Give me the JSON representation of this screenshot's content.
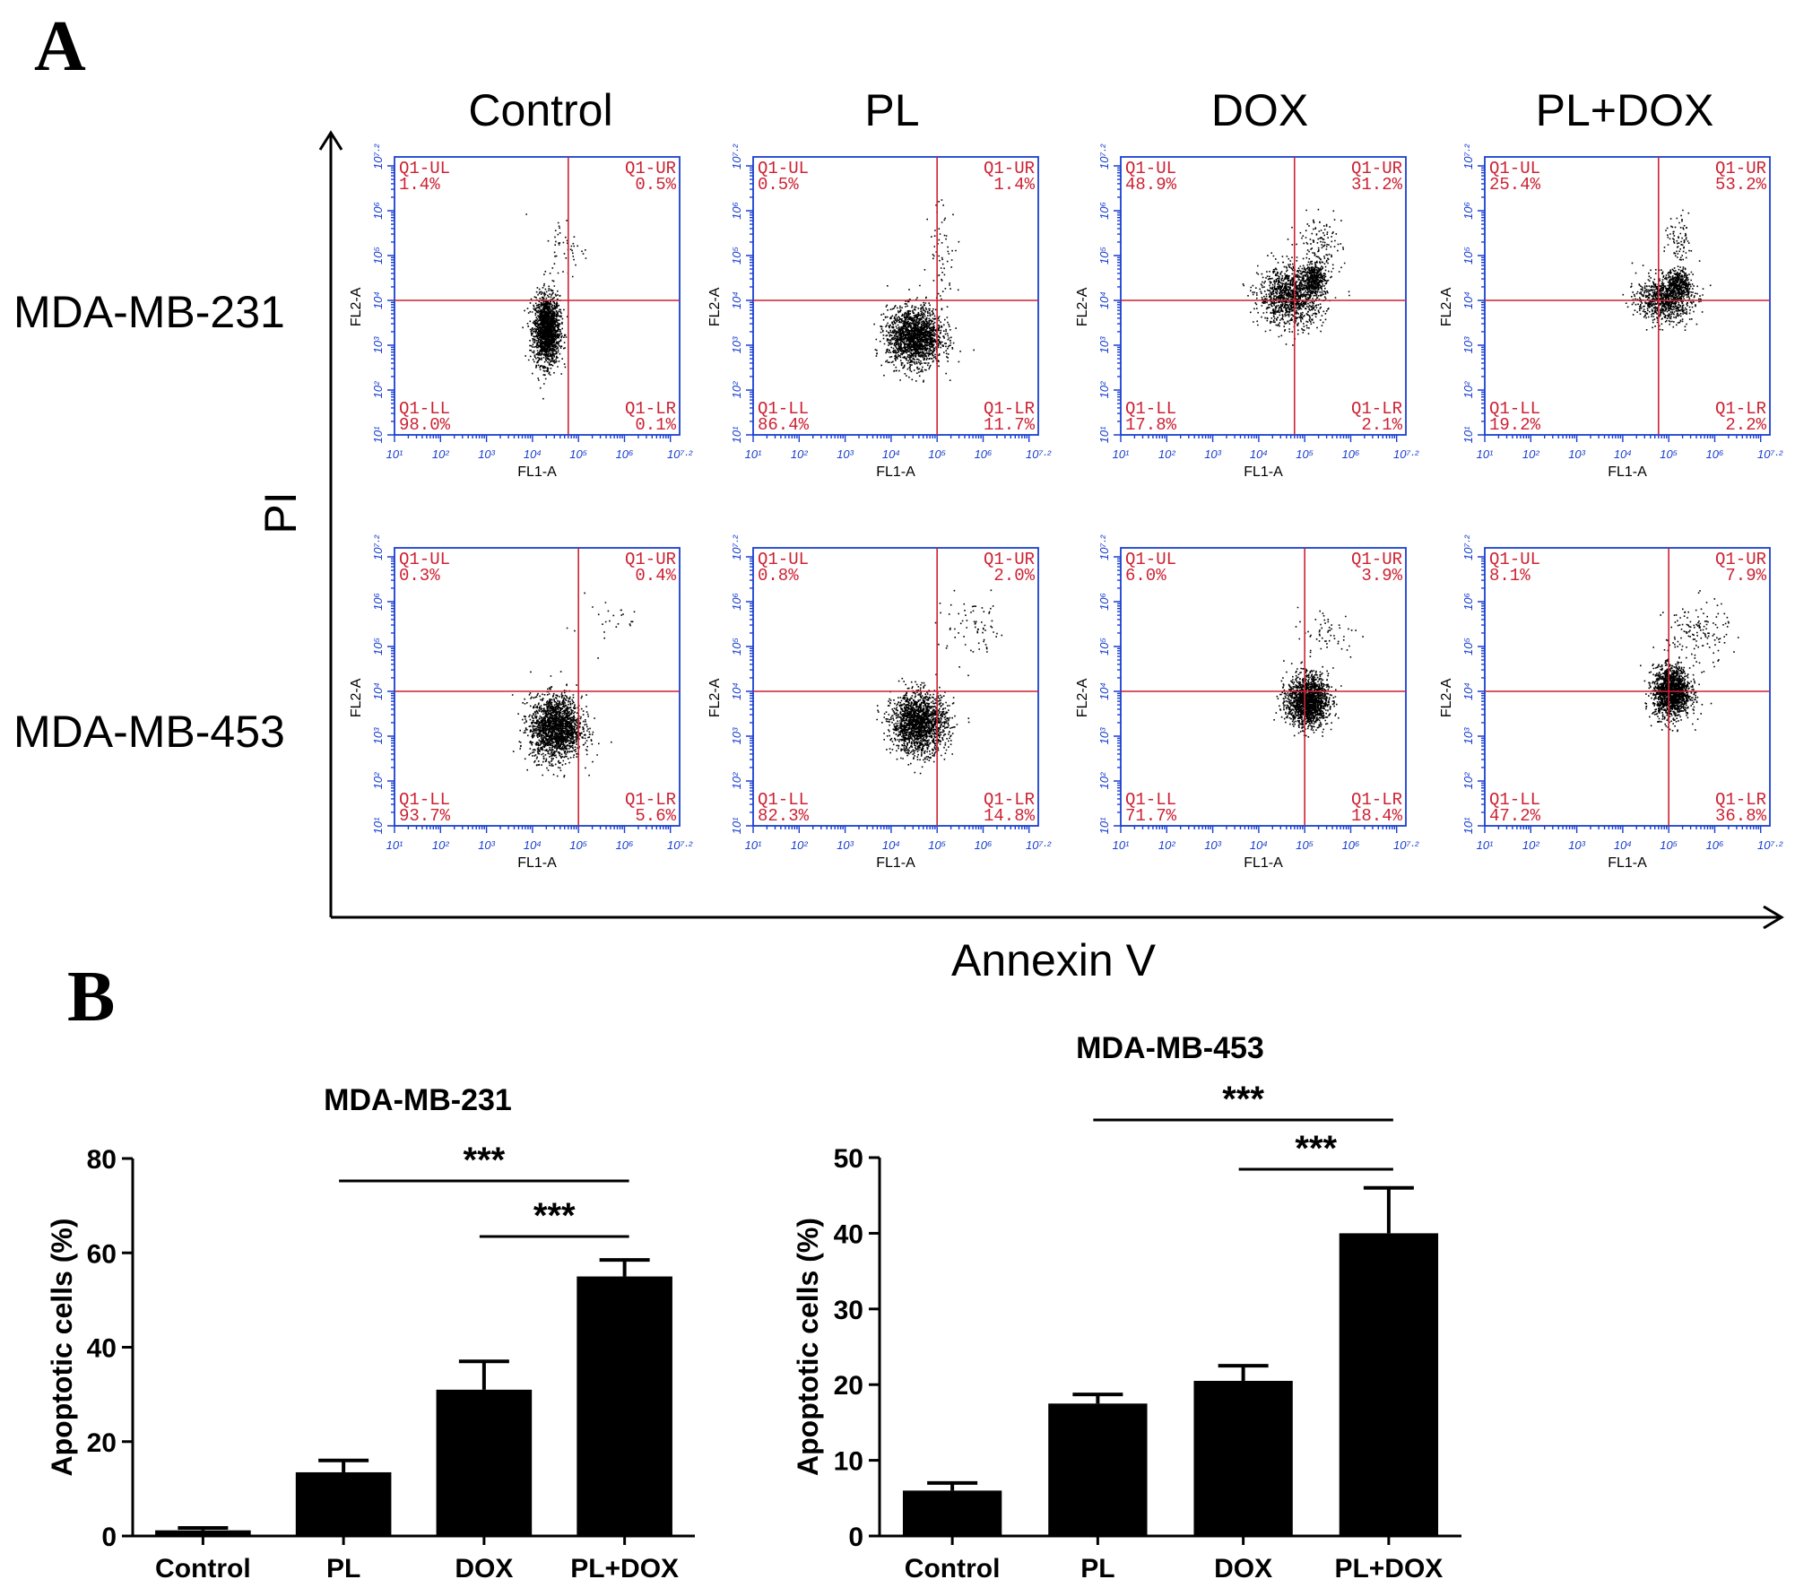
{
  "panel_a": {
    "label": "A",
    "column_titles": [
      "Control",
      "PL",
      "DOX",
      "PL+DOX"
    ],
    "row_titles": [
      "MDA-MB-231",
      "MDA-MB-453"
    ],
    "y_axis_title": "PI",
    "x_axis_title": "Annexin V",
    "plot_xlabel": "FL1-A",
    "plot_ylabel": "FL2-A",
    "tick_labels": [
      "10¹",
      "10²",
      "10³",
      "10⁴",
      "10⁵",
      "10⁶",
      "10⁷·²"
    ],
    "gate_color": "#cc2233",
    "axis_color": "#1a3fcf"
  },
  "chart_data": [
    {
      "type": "scatter",
      "title": "",
      "xlabel": "FL1-A",
      "ylabel": "FL2-A",
      "x_scale": "log",
      "y_scale": "log",
      "xlim": [
        10,
        15848932
      ],
      "ylim": [
        10,
        15848932
      ],
      "panels": [
        {
          "row": "MDA-MB-231",
          "column": "Control",
          "gate": {
            "x": 60000,
            "y": 10000
          },
          "quadrants": {
            "UL": "1.4%",
            "UR": "0.5%",
            "LL": "98.0%",
            "LR": "0.1%"
          }
        },
        {
          "row": "MDA-MB-231",
          "column": "PL",
          "gate": {
            "x": 100000,
            "y": 10000
          },
          "quadrants": {
            "UL": "0.5%",
            "UR": "1.4%",
            "LL": "86.4%",
            "LR": "11.7%"
          }
        },
        {
          "row": "MDA-MB-231",
          "column": "DOX",
          "gate": {
            "x": 60000,
            "y": 10000
          },
          "quadrants": {
            "UL": "48.9%",
            "UR": "31.2%",
            "LL": "17.8%",
            "LR": "2.1%"
          }
        },
        {
          "row": "MDA-MB-231",
          "column": "PL+DOX",
          "gate": {
            "x": 60000,
            "y": 10000
          },
          "quadrants": {
            "UL": "25.4%",
            "UR": "53.2%",
            "LL": "19.2%",
            "LR": "2.2%"
          }
        },
        {
          "row": "MDA-MB-453",
          "column": "Control",
          "gate": {
            "x": 100000,
            "y": 10000
          },
          "quadrants": {
            "UL": "0.3%",
            "UR": "0.4%",
            "LL": "93.7%",
            "LR": "5.6%"
          }
        },
        {
          "row": "MDA-MB-453",
          "column": "PL",
          "gate": {
            "x": 100000,
            "y": 10000
          },
          "quadrants": {
            "UL": "0.8%",
            "UR": "2.0%",
            "LL": "82.3%",
            "LR": "14.8%"
          }
        },
        {
          "row": "MDA-MB-453",
          "column": "DOX",
          "gate": {
            "x": 100000,
            "y": 10000
          },
          "quadrants": {
            "UL": "6.0%",
            "UR": "3.9%",
            "LL": "71.7%",
            "LR": "18.4%"
          }
        },
        {
          "row": "MDA-MB-453",
          "column": "PL+DOX",
          "gate": {
            "x": 100000,
            "y": 10000
          },
          "quadrants": {
            "UL": "8.1%",
            "UR": "7.9%",
            "LL": "47.2%",
            "LR": "36.8%"
          }
        }
      ]
    },
    {
      "type": "bar",
      "title": "MDA-MB-231",
      "categories": [
        "Control",
        "PL",
        "DOX",
        "PL+DOX"
      ],
      "values": [
        1.2,
        13.5,
        31,
        55
      ],
      "errors": [
        0.5,
        2.5,
        6,
        3.5
      ],
      "xlabel": "",
      "ylabel": "Apoptotic cells (%)",
      "ylim": [
        0,
        80
      ],
      "yticks": [
        0,
        20,
        40,
        60,
        80
      ],
      "significance": [
        {
          "from": "PL",
          "to": "PL+DOX",
          "label": "***"
        },
        {
          "from": "DOX",
          "to": "PL+DOX",
          "label": "***"
        }
      ],
      "bar_color": "#000000"
    },
    {
      "type": "bar",
      "title": "MDA-MB-453",
      "categories": [
        "Control",
        "PL",
        "DOX",
        "PL+DOX"
      ],
      "values": [
        6,
        17.5,
        20.5,
        40
      ],
      "errors": [
        1,
        1.2,
        2,
        6
      ],
      "xlabel": "",
      "ylabel": "Apoptotic cells (%)",
      "ylim": [
        0,
        50
      ],
      "yticks": [
        0,
        10,
        20,
        30,
        40,
        50
      ],
      "significance": [
        {
          "from": "PL",
          "to": "PL+DOX",
          "label": "***"
        },
        {
          "from": "DOX",
          "to": "PL+DOX",
          "label": "***"
        }
      ],
      "bar_color": "#000000"
    }
  ],
  "panel_b": {
    "label": "B"
  }
}
